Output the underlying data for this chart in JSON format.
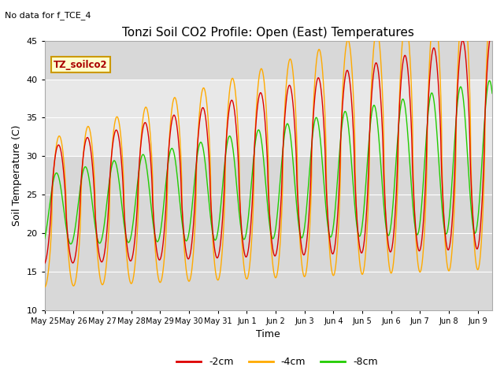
{
  "title": "Tonzi Soil CO2 Profile: Open (East) Temperatures",
  "note": "No data for f_TCE_4",
  "xlabel": "Time",
  "ylabel": "Soil Temperature (C)",
  "ylim": [
    10,
    45
  ],
  "xlim_start": 0,
  "xlim_end": 15.5,
  "shaded_band": [
    30,
    40
  ],
  "legend_label": "TZ_soilco2",
  "series_labels": [
    "-2cm",
    "-4cm",
    "-8cm"
  ],
  "series_colors": [
    "#dd0000",
    "#ffaa00",
    "#22cc00"
  ],
  "xtick_labels": [
    "May 25",
    "May 26",
    "May 27",
    "May 28",
    "May 29",
    "May 30",
    "May 31",
    "Jun 1",
    "Jun 2",
    "Jun 3",
    "Jun 4",
    "Jun 5",
    "Jun 6",
    "Jun 7",
    "Jun 8",
    "Jun 9"
  ],
  "plot_bg": "#d8d8d8",
  "band_color": "#e8e8e8",
  "title_fontsize": 11,
  "note_fontsize": 8,
  "tick_fontsize": 7,
  "label_fontsize": 9
}
